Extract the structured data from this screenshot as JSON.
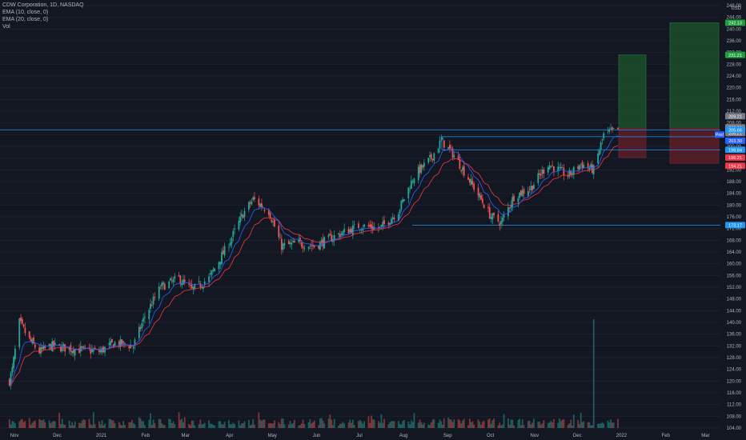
{
  "legend": {
    "title": "CDW Corporation, 1D, NASDAQ",
    "ema10": "EMA (10, close, 0)",
    "ema20": "EMA (20, close, 0)",
    "vol": "Vol"
  },
  "colors": {
    "background": "#131722",
    "up": "#26a69a",
    "down": "#ef5350",
    "ema10": "#2962ff",
    "ema20": "#f23645",
    "hline": "#2196f3",
    "profit_zone": "#1b4d2a",
    "loss_zone": "#5c1e28",
    "axis_text": "#b2b5be"
  },
  "chart_data": {
    "type": "candlestick",
    "y_unit": "USD",
    "ylim": [
      104,
      248
    ],
    "y_ticks": [
      "104.00",
      "108.00",
      "112.00",
      "116.00",
      "120.00",
      "124.00",
      "128.00",
      "132.00",
      "136.00",
      "140.00",
      "144.00",
      "148.00",
      "152.00",
      "156.00",
      "160.00",
      "164.00",
      "168.00",
      "172.00",
      "176.00",
      "180.00",
      "184.00",
      "188.00",
      "192.00",
      "196.00",
      "200.00",
      "204.00",
      "208.00",
      "212.00",
      "216.00",
      "220.00",
      "224.00",
      "228.00",
      "232.00",
      "236.00",
      "240.00",
      "244.00",
      "248.00"
    ],
    "x_ticks": [
      "Nov",
      "Dec",
      "2021",
      "Feb",
      "Mar",
      "Apr",
      "May",
      "Jun",
      "Jul",
      "Aug",
      "Sep",
      "Oct",
      "Nov",
      "Dec",
      "2022",
      "Feb",
      "Mar"
    ],
    "price_labels": [
      {
        "text": "242.13",
        "value": 242.13,
        "color": "#1e9e3e"
      },
      {
        "text": "231.21",
        "value": 231.21,
        "color": "#1e9e3e"
      },
      {
        "text": "209.21",
        "value": 209.21,
        "color": "#787b86"
      },
      {
        "text": "206.21",
        "value": 206.21,
        "color": "#787b86"
      },
      {
        "text": "206.21",
        "value": 206.21,
        "color": "#787b86"
      },
      {
        "text": "205.66",
        "value": 205.66,
        "color": "#2196f3"
      },
      {
        "text": "203.30",
        "value": 203.3,
        "color": "#2962ff"
      },
      {
        "text": "198.84",
        "value": 198.84,
        "color": "#2196f3"
      },
      {
        "text": "196.21",
        "value": 196.21,
        "color": "#f23645"
      },
      {
        "text": "194.21",
        "value": 194.21,
        "color": "#f23645"
      },
      {
        "text": "173.17",
        "value": 173.17,
        "color": "#2196f3"
      }
    ],
    "current_price_tag": "Pos!",
    "horizontal_lines": [
      205.66,
      203.3,
      198.84,
      173.17
    ],
    "positions": [
      {
        "entry": 206.21,
        "target": 231.21,
        "stop": 196.21
      },
      {
        "entry": 206.21,
        "target": 242.13,
        "stop": 194.21
      }
    ],
    "price_path": [
      {
        "date": "2020-11-01",
        "close": 118
      },
      {
        "date": "2020-11-04",
        "close": 124
      },
      {
        "date": "2020-11-09",
        "close": 140
      },
      {
        "date": "2020-11-16",
        "close": 134
      },
      {
        "date": "2020-11-23",
        "close": 130
      },
      {
        "date": "2020-12-01",
        "close": 132
      },
      {
        "date": "2020-12-15",
        "close": 131
      },
      {
        "date": "2021-01-04",
        "close": 130
      },
      {
        "date": "2021-01-15",
        "close": 133
      },
      {
        "date": "2021-01-28",
        "close": 132
      },
      {
        "date": "2021-02-05",
        "close": 142
      },
      {
        "date": "2021-02-16",
        "close": 152
      },
      {
        "date": "2021-03-01",
        "close": 155
      },
      {
        "date": "2021-03-10",
        "close": 151
      },
      {
        "date": "2021-03-22",
        "close": 155
      },
      {
        "date": "2021-04-05",
        "close": 167
      },
      {
        "date": "2021-04-15",
        "close": 177
      },
      {
        "date": "2021-04-22",
        "close": 182
      },
      {
        "date": "2021-05-03",
        "close": 178
      },
      {
        "date": "2021-05-12",
        "close": 166
      },
      {
        "date": "2021-05-24",
        "close": 167
      },
      {
        "date": "2021-06-04",
        "close": 166
      },
      {
        "date": "2021-06-21",
        "close": 170
      },
      {
        "date": "2021-07-06",
        "close": 173
      },
      {
        "date": "2021-07-20",
        "close": 172
      },
      {
        "date": "2021-08-02",
        "close": 178
      },
      {
        "date": "2021-08-13",
        "close": 190
      },
      {
        "date": "2021-08-25",
        "close": 196
      },
      {
        "date": "2021-09-01",
        "close": 202
      },
      {
        "date": "2021-09-10",
        "close": 197
      },
      {
        "date": "2021-09-24",
        "close": 186
      },
      {
        "date": "2021-10-06",
        "close": 176
      },
      {
        "date": "2021-10-13",
        "close": 174
      },
      {
        "date": "2021-10-22",
        "close": 183
      },
      {
        "date": "2021-11-03",
        "close": 186
      },
      {
        "date": "2021-11-15",
        "close": 194
      },
      {
        "date": "2021-11-29",
        "close": 190
      },
      {
        "date": "2021-12-08",
        "close": 194
      },
      {
        "date": "2021-12-17",
        "close": 192
      },
      {
        "date": "2021-12-24",
        "close": 204
      },
      {
        "date": "2022-01-03",
        "close": 205.66
      }
    ]
  }
}
